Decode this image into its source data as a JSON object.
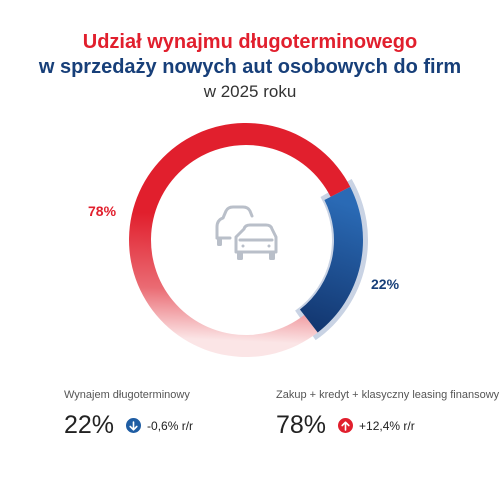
{
  "title": {
    "line1": "Udział wynajmu długoterminowego",
    "line2": "w sprzedaży nowych aut osobowych do firm",
    "line3": "w 2025 roku"
  },
  "chart_data": {
    "type": "pie",
    "variant": "donut",
    "center_icon": "cars-icon",
    "series": [
      {
        "name": "Zakup + kredyt + klasyczny leasing finansowy",
        "value": 78,
        "label": "78%",
        "color": "#e11f2d"
      },
      {
        "name": "Wynajem długoterminowy",
        "value": 22,
        "label": "22%",
        "color": "#1f5da3"
      }
    ]
  },
  "stats": {
    "left": {
      "caption": "Wynajem długoterminowy",
      "value": "22%",
      "change": "-0,6% r/r",
      "direction": "down",
      "badge_color": "#1f5da3",
      "icon": "arrow-down-icon"
    },
    "right": {
      "caption": "Zakup + kredyt + klasyczny leasing finansowy",
      "value": "78%",
      "change": "+12,4% r/r",
      "direction": "up",
      "badge_color": "#e11f2d",
      "icon": "arrow-up-icon"
    }
  }
}
